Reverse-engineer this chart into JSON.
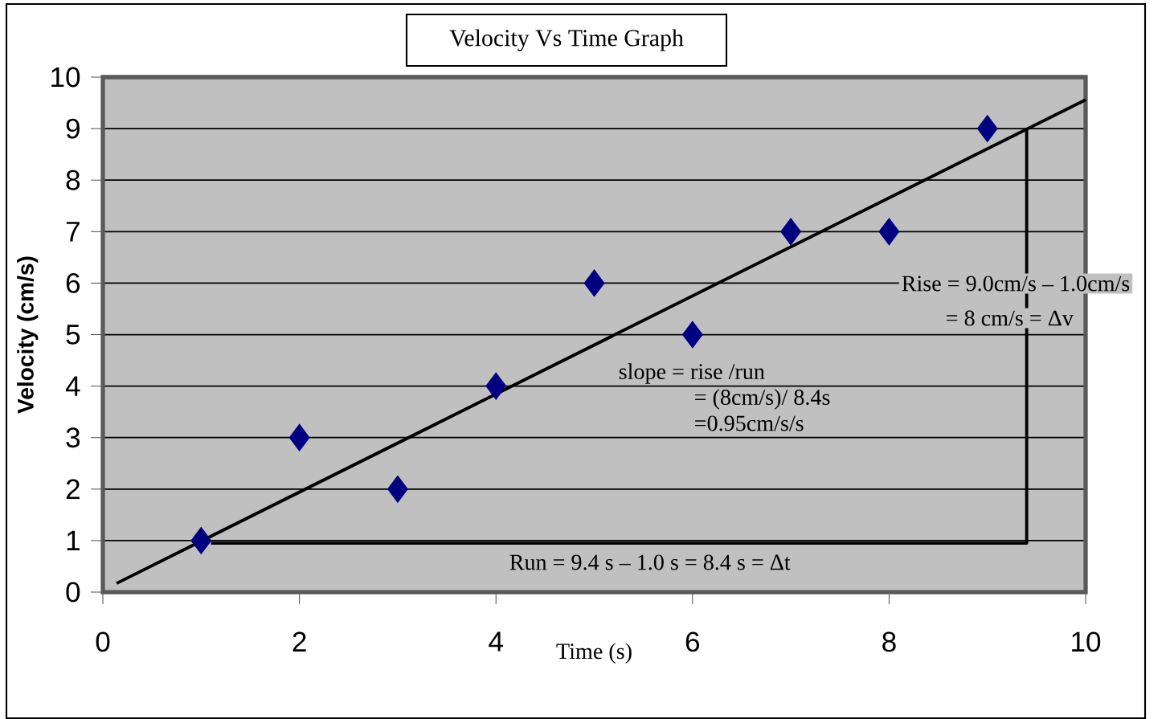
{
  "chart_data": {
    "type": "scatter",
    "title": "Velocity Vs Time Graph",
    "xlabel": "Time (s)",
    "ylabel": "Velocity (cm/s)",
    "xlim": [
      0,
      10
    ],
    "ylim": [
      0,
      10
    ],
    "xticks": [
      0,
      2,
      4,
      6,
      8,
      10
    ],
    "yticks": [
      0,
      1,
      2,
      3,
      4,
      5,
      6,
      7,
      8,
      9,
      10
    ],
    "grid": "y",
    "series": [
      {
        "color": "#000080",
        "marker": "diamond",
        "x": [
          1,
          2,
          3,
          4,
          5,
          6,
          7,
          8,
          9
        ],
        "values": [
          1,
          3,
          2,
          4,
          6,
          5,
          7,
          7,
          9
        ]
      },
      {
        "type": "line",
        "color": "#000000",
        "marker": "none",
        "x": [
          1.1,
          9.4,
          9.4
        ],
        "values": [
          0.95,
          0.95,
          9
        ]
      },
      {
        "type": "line",
        "color": "#000000",
        "marker": "none",
        "x": [
          0.14,
          10
        ],
        "values": [
          0.17,
          9.56
        ]
      }
    ],
    "annotations": [
      "slope    = rise /run",
      "= (8cm/s)/ 8.4s",
      "=0.95cm/s/s",
      "Rise = 9.0cm/s – 1.0cm/s",
      "=   8 cm/s = Δv",
      "Run = 9.4 s – 1.0 s = 8.4 s = Δt"
    ]
  }
}
